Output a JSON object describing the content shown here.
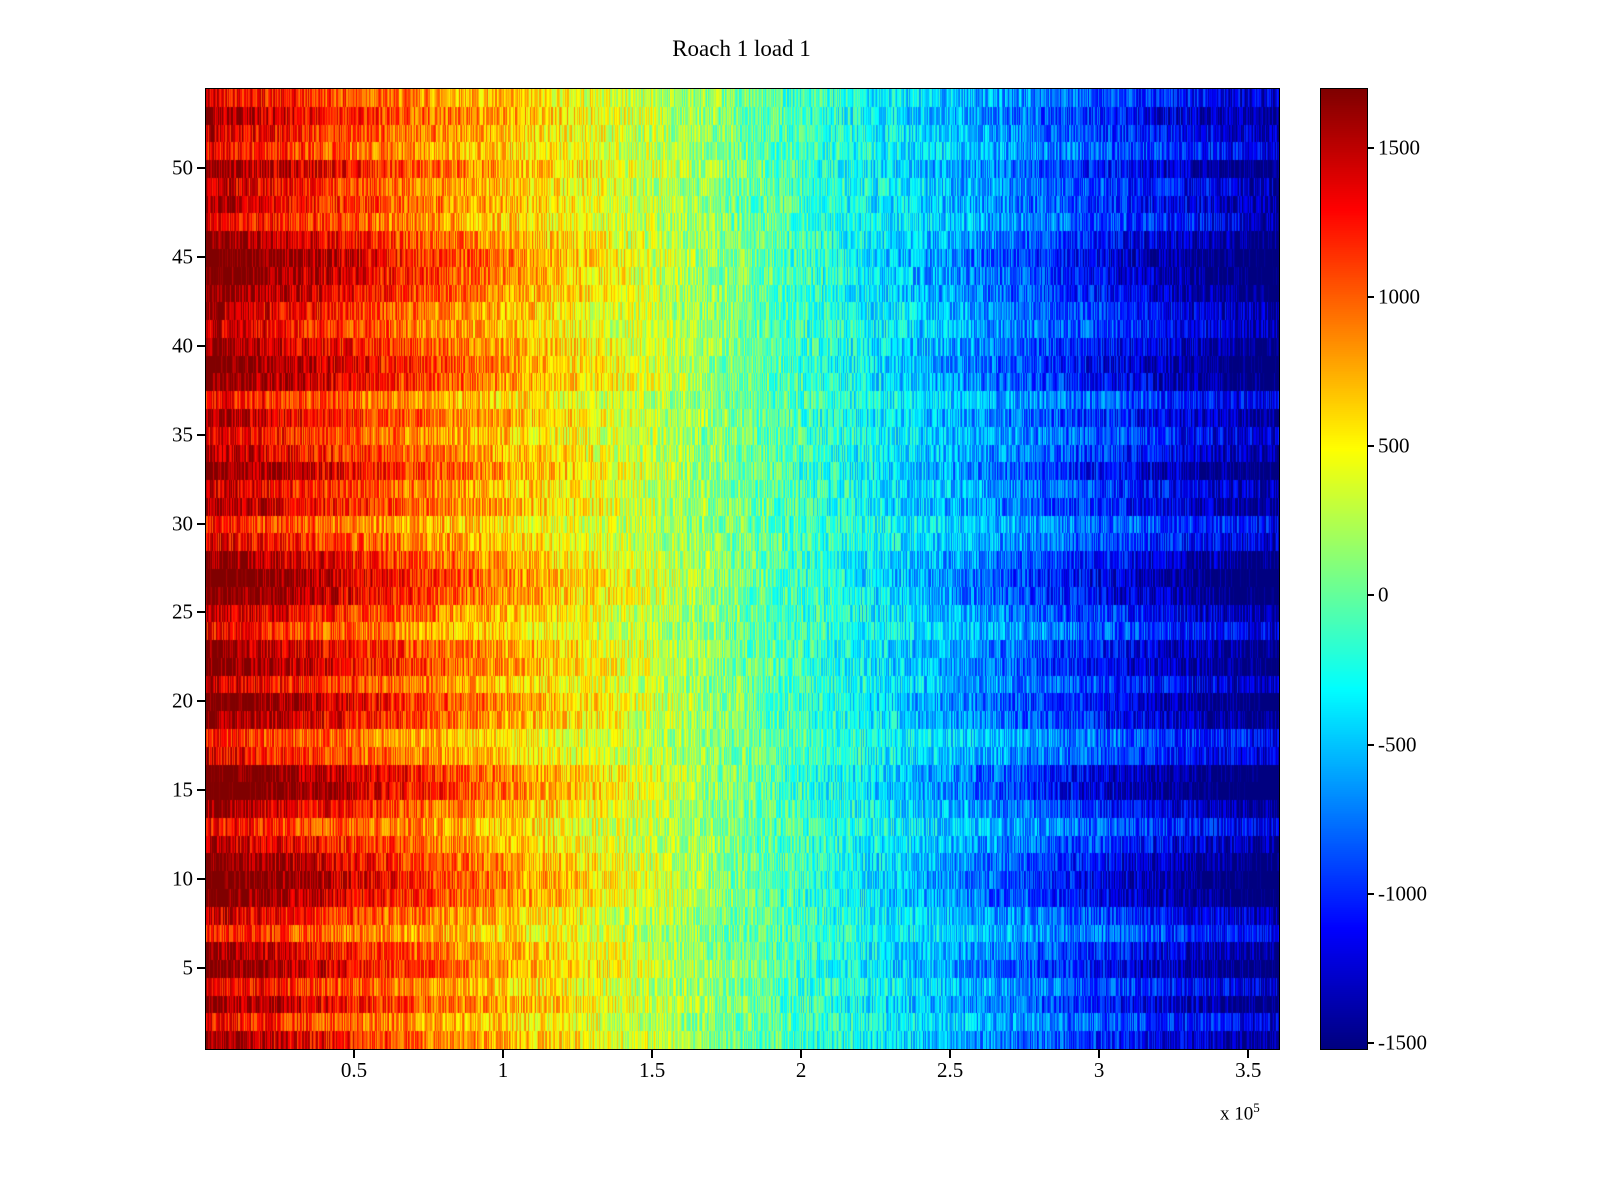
{
  "figure": {
    "title": "Roach 1 load 1"
  },
  "chart_data": {
    "type": "heatmap",
    "title": "Roach 1 load 1",
    "colormap": "jet",
    "grid": false,
    "legend": "colorbar-right",
    "x_axis": {
      "range": [
        0,
        360000
      ],
      "ticks": [
        {
          "label": "0.5",
          "value": 50000
        },
        {
          "label": "1",
          "value": 100000
        },
        {
          "label": "1.5",
          "value": 150000
        },
        {
          "label": "2",
          "value": 200000
        },
        {
          "label": "2.5",
          "value": 250000
        },
        {
          "label": "3",
          "value": 300000
        },
        {
          "label": "3.5",
          "value": 350000
        }
      ],
      "multiplier_base": "x 10",
      "multiplier_exp": "5"
    },
    "y_axis": {
      "rows": 54,
      "range": [
        1,
        54
      ],
      "ticks": [
        {
          "label": "5",
          "value": 5
        },
        {
          "label": "10",
          "value": 10
        },
        {
          "label": "15",
          "value": 15
        },
        {
          "label": "20",
          "value": 20
        },
        {
          "label": "25",
          "value": 25
        },
        {
          "label": "30",
          "value": 30
        },
        {
          "label": "35",
          "value": 35
        },
        {
          "label": "40",
          "value": 40
        },
        {
          "label": "45",
          "value": 45
        },
        {
          "label": "50",
          "value": 50
        }
      ]
    },
    "colorbar": {
      "clim": [
        -1516,
        1700
      ],
      "ticks": [
        {
          "label": "1500",
          "value": 1500
        },
        {
          "label": "1000",
          "value": 1000
        },
        {
          "label": "500",
          "value": 500
        },
        {
          "label": "0",
          "value": 0
        },
        {
          "label": "-500",
          "value": -500
        },
        {
          "label": "-1000",
          "value": -1000
        },
        {
          "label": "-1500",
          "value": -1500
        }
      ]
    },
    "value_model": {
      "description": "value(row,x) = row_amplitude[row] * (left_value + (right_value-left_value)*x/x_max) + uniform noise; rows indexed bottom(1) to top(54)",
      "left_value": 1550,
      "right_value": -1450,
      "noise_amplitude": 330,
      "row_amplitudes": [
        1.05,
        0.85,
        1.1,
        0.9,
        1.15,
        1.05,
        0.8,
        0.95,
        1.2,
        1.25,
        1.15,
        1.0,
        0.85,
        1.05,
        1.3,
        1.25,
        0.9,
        0.8,
        1.1,
        1.2,
        0.95,
        1.15,
        1.1,
        0.85,
        1.0,
        1.2,
        1.25,
        1.1,
        0.9,
        0.8,
        1.05,
        0.95,
        1.15,
        1.0,
        0.9,
        1.05,
        0.85,
        1.15,
        1.2,
        1.1,
        0.95,
        1.0,
        1.15,
        1.2,
        1.25,
        1.1,
        0.9,
        1.0,
        0.95,
        1.1,
        0.85,
        0.95,
        1.05,
        0.9
      ]
    }
  }
}
